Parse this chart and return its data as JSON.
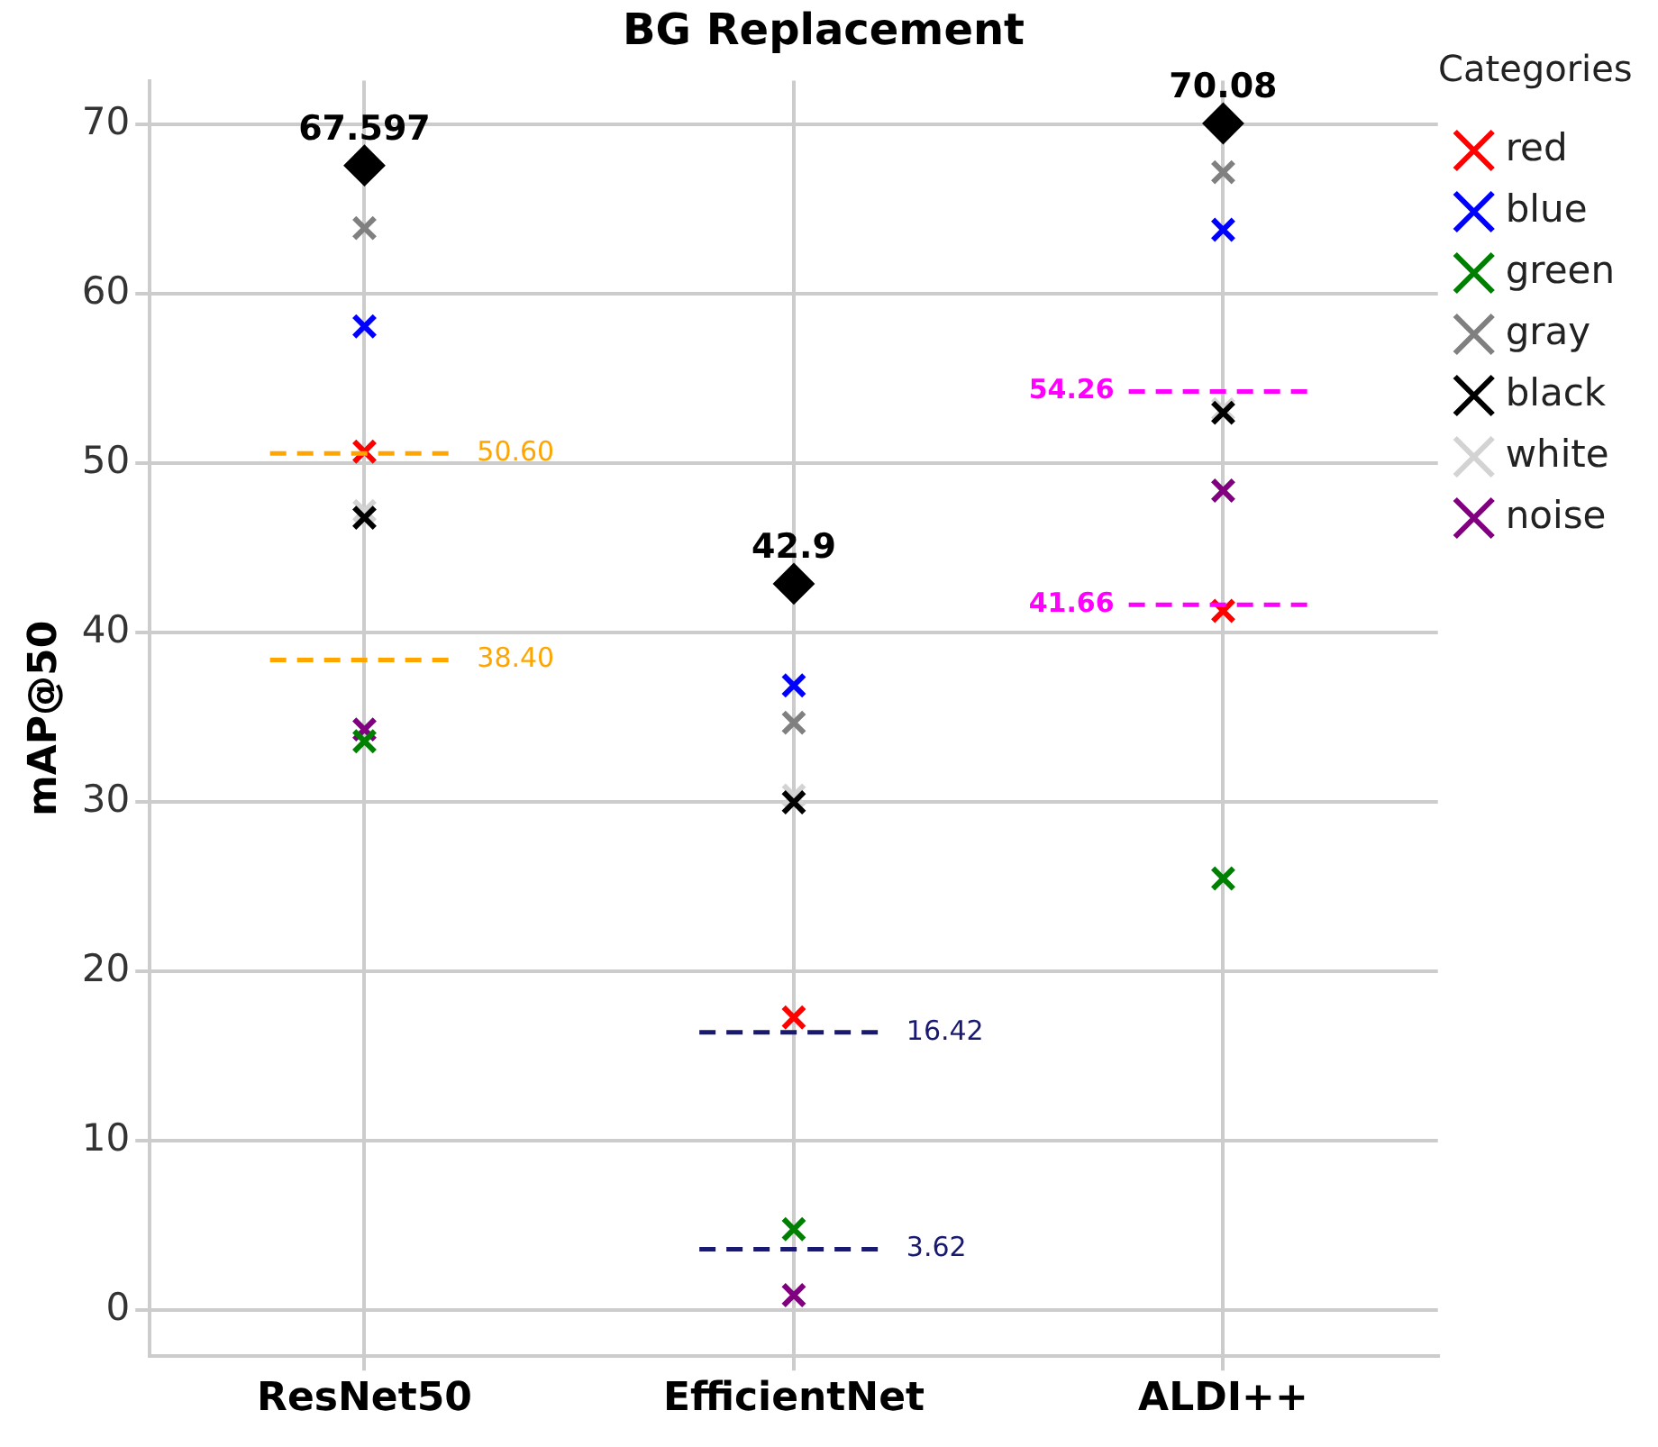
{
  "chart_data": {
    "type": "scatter",
    "title": "BG Replacement",
    "ylabel": "mAP@50",
    "legend_title": "Categories",
    "categories": [
      "ResNet50",
      "EfficientNet",
      "ALDI++"
    ],
    "series": [
      {
        "name": "red",
        "color": "#ff0000",
        "values": [
          50.7,
          17.3,
          41.3
        ]
      },
      {
        "name": "blue",
        "color": "#0000ff",
        "values": [
          58.1,
          36.9,
          63.8
        ]
      },
      {
        "name": "green",
        "color": "#008000",
        "values": [
          33.6,
          4.8,
          25.5
        ]
      },
      {
        "name": "gray",
        "color": "#808080",
        "values": [
          63.9,
          34.7,
          67.2
        ]
      },
      {
        "name": "black",
        "color": "#000000",
        "values": [
          46.8,
          30.0,
          53.0
        ]
      },
      {
        "name": "white",
        "color": "#d3d3d3",
        "values": [
          47.2,
          30.4,
          53.2
        ]
      },
      {
        "name": "noise",
        "color": "#800080",
        "values": [
          34.3,
          0.9,
          48.4
        ]
      },
      {
        "color": "#000000",
        "marker": "diamond",
        "values": [
          67.597,
          42.9,
          70.08
        ],
        "value_labels": [
          "67.597",
          "42.9",
          "70.08"
        ]
      }
    ],
    "marker": "cross",
    "ylim": [
      -2.7,
      72.6
    ],
    "yticks": [
      0,
      10,
      20,
      30,
      40,
      50,
      60,
      70
    ],
    "grid": true,
    "legend": "top right",
    "ref_lines": [
      {
        "axis": "y",
        "value": 50.6,
        "label": "50.60",
        "color": "#ffa500",
        "line_style": "dashed"
      },
      {
        "axis": "y",
        "value": 38.4,
        "label": "38.40",
        "color": "#ffa500",
        "line_style": "dashed"
      },
      {
        "axis": "y",
        "value": 16.42,
        "label": "16.42",
        "color": "#191970",
        "line_style": "dashed"
      },
      {
        "axis": "y",
        "value": 3.62,
        "label": "3.62",
        "color": "#191970",
        "line_style": "dashed"
      },
      {
        "axis": "y",
        "value": 54.26,
        "label": "54.26",
        "color": "#ff00ff",
        "line_style": "dashed"
      },
      {
        "axis": "y",
        "value": 41.66,
        "label": "41.66",
        "color": "#ff00ff",
        "line_style": "dashed"
      }
    ]
  }
}
